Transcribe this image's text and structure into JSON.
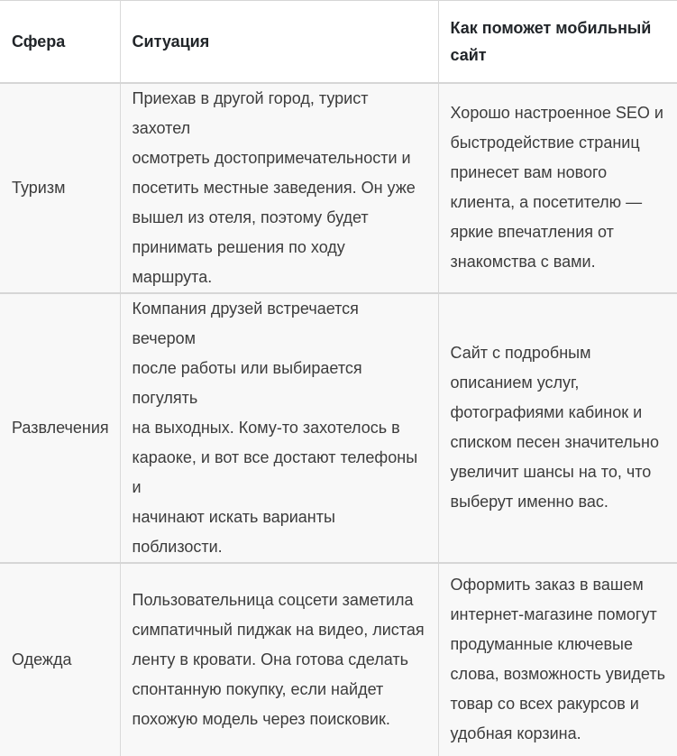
{
  "colors": {
    "header_bg": "#ffffff",
    "row_bg": "#f8f8f8",
    "border": "#d6d6d6",
    "header_text": "#212529",
    "body_text": "#3c3c3c"
  },
  "table": {
    "headers": [
      {
        "id": "sphere",
        "label": "Сфера"
      },
      {
        "id": "situation",
        "label": "Ситуация"
      },
      {
        "id": "benefit",
        "label": "Как поможет мобильный\nсайт"
      }
    ],
    "rows": [
      {
        "sphere": "Туризм",
        "situation": "Приехав в другой город, турист захотел\nосмотреть достопримечательности и\nпосетить местные заведения. Он уже\nвышел из отеля, поэтому будет\nпринимать решения по ходу маршрута.",
        "benefit": "Хорошо настроенное SEO и\nбыстродействие страниц\nпринесет вам нового\nклиента, а посетителю —\nяркие впечатления от\nзнакомства с вами."
      },
      {
        "sphere": "Развлечения",
        "situation": "Компания друзей встречается вечером\nпосле работы или выбирается погулять\nна выходных. Кому-то захотелось в\nкараоке, и вот все достают телефоны и\nначинают искать варианты поблизости.",
        "benefit": "Сайт с подробным\nописанием услуг,\nфотографиями кабинок и\nсписком песен значительно\nувеличит шансы на то, что\nвыберут именно вас."
      },
      {
        "sphere": "Одежда",
        "situation": "Пользовательница соцсети заметила\nсимпатичный пиджак на видео, листая\nленту в кровати. Она готова сделать\nспонтанную покупку, если найдет\nпохожую модель через поисковик.",
        "benefit": "Оформить заказ в вашем\nинтернет-магазине помогут\nпродуманные ключевые\nслова, возможность увидеть\nтовар со всех ракурсов и\nудобная корзина."
      }
    ]
  }
}
